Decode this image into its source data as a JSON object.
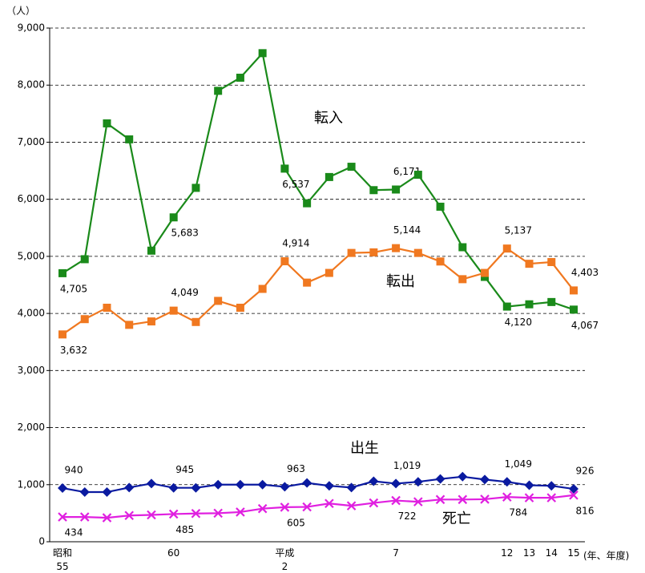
{
  "chart_data": {
    "type": "line",
    "y_unit": "（人）",
    "x_unit": "(年、年度)",
    "categories": [
      "昭和\n55",
      null,
      null,
      null,
      null,
      "60",
      null,
      null,
      null,
      null,
      "平成\n2",
      null,
      null,
      null,
      null,
      "7",
      null,
      null,
      null,
      null,
      "12",
      "13",
      "14",
      "15"
    ],
    "ylim": [
      0,
      9000
    ],
    "yticks": [
      0,
      {
        "value": 1000,
        "label": "1,000"
      },
      {
        "value": 2000,
        "label": "2,000"
      },
      {
        "value": 3000,
        "label": "3,000"
      },
      {
        "value": 4000,
        "label": "4,000"
      },
      {
        "value": 5000,
        "label": "5,000"
      },
      {
        "value": 6000,
        "label": "6,000"
      },
      {
        "value": 7000,
        "label": "7,000"
      },
      {
        "value": 8000,
        "label": "8,000"
      },
      {
        "value": 9000,
        "label": "9,000"
      }
    ],
    "grid": true,
    "series": [
      {
        "name": "転入",
        "color": "#1a8a1a",
        "marker": "square",
        "values": [
          4705,
          4950,
          7330,
          7050,
          5100,
          5683,
          6200,
          7900,
          8130,
          8560,
          6537,
          5930,
          6390,
          6570,
          6160,
          6171,
          6430,
          5870,
          5160,
          4640,
          4120,
          4160,
          4200,
          4067
        ],
        "value_labels": [
          "4,705",
          null,
          null,
          null,
          null,
          "5,683",
          null,
          null,
          null,
          null,
          "6,537",
          null,
          null,
          null,
          null,
          "6,171",
          null,
          null,
          null,
          null,
          "4,120",
          null,
          null,
          "4,067"
        ]
      },
      {
        "name": "転出",
        "color": "#f07820",
        "marker": "square",
        "values": [
          3632,
          3900,
          4100,
          3800,
          3860,
          4049,
          3850,
          4220,
          4100,
          4430,
          4914,
          4540,
          4710,
          5060,
          5070,
          5144,
          5060,
          4910,
          4600,
          4710,
          5137,
          4870,
          4900,
          4403
        ],
        "value_labels": [
          "3,632",
          null,
          null,
          null,
          null,
          "4,049",
          null,
          null,
          null,
          null,
          "4,914",
          null,
          null,
          null,
          null,
          "5,144",
          null,
          null,
          null,
          null,
          "5,137",
          null,
          null,
          "4,403"
        ]
      },
      {
        "name": "出生",
        "color": "#0a1aa0",
        "marker": "diamond",
        "values": [
          940,
          870,
          870,
          950,
          1020,
          945,
          945,
          1000,
          1000,
          1000,
          963,
          1030,
          980,
          950,
          1060,
          1019,
          1050,
          1100,
          1140,
          1090,
          1049,
          990,
          980,
          926
        ],
        "value_labels": [
          "940",
          null,
          null,
          null,
          null,
          "945",
          null,
          null,
          null,
          null,
          "963",
          null,
          null,
          null,
          null,
          "1,019",
          null,
          null,
          null,
          null,
          "1,049",
          null,
          null,
          "926"
        ]
      },
      {
        "name": "死亡",
        "color": "#e020e0",
        "marker": "x",
        "values": [
          434,
          434,
          420,
          460,
          470,
          485,
          495,
          500,
          520,
          580,
          605,
          610,
          670,
          630,
          680,
          722,
          700,
          740,
          740,
          745,
          784,
          770,
          770,
          816
        ],
        "value_labels": [
          "434",
          null,
          null,
          null,
          null,
          "485",
          null,
          null,
          null,
          null,
          "605",
          null,
          null,
          null,
          null,
          "722",
          null,
          null,
          null,
          null,
          "784",
          null,
          null,
          "816"
        ]
      }
    ]
  }
}
